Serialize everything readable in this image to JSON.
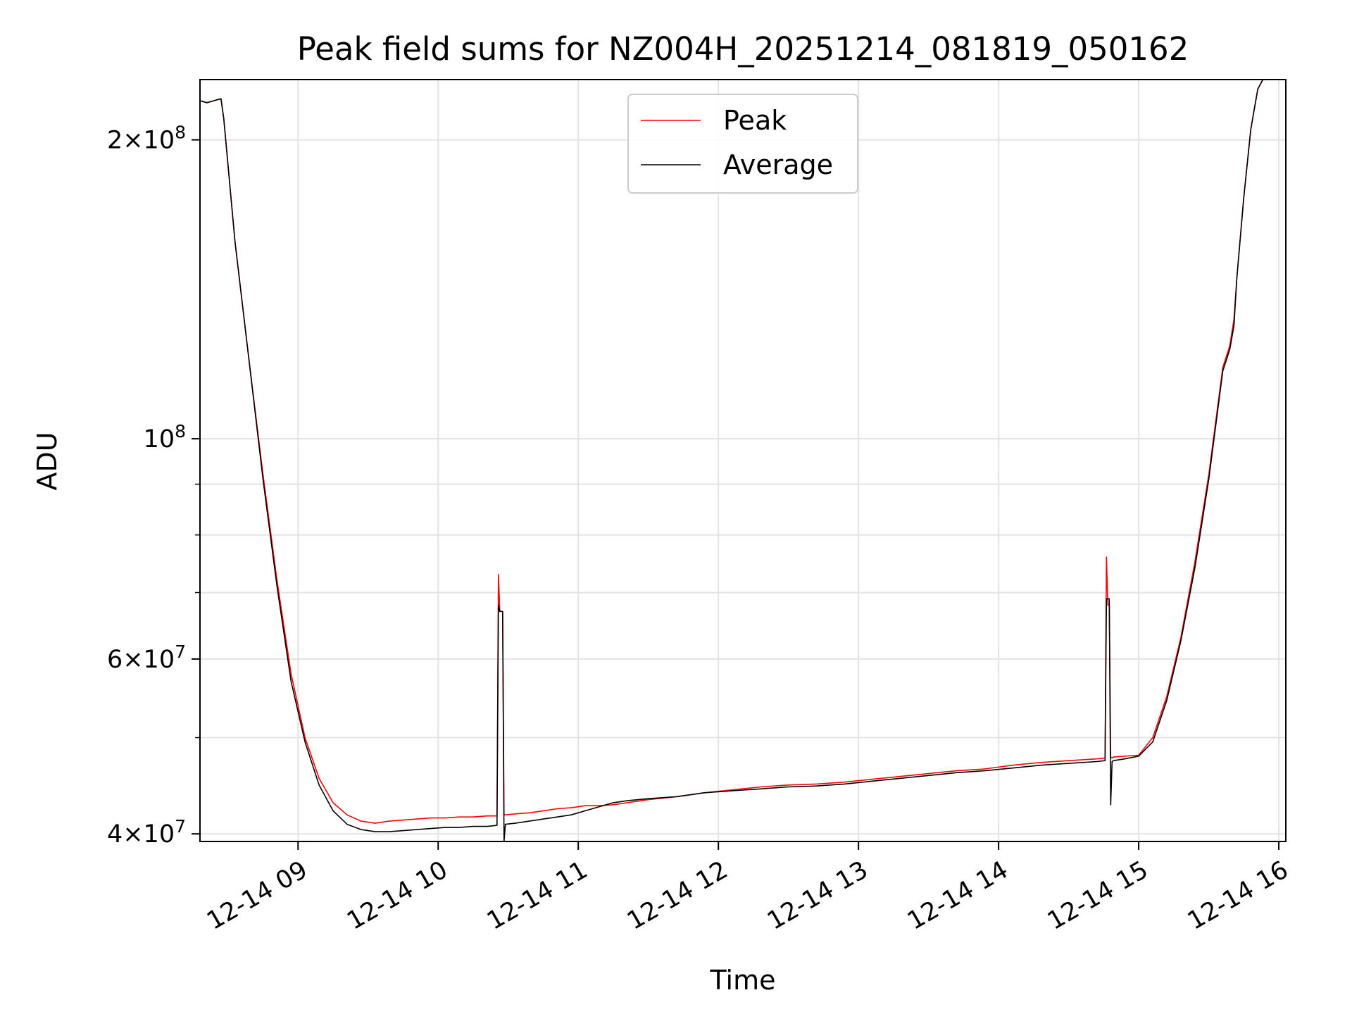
{
  "chart_data": {
    "type": "line",
    "title": "Peak field sums for NZ004H_20251214_081819_050162",
    "xlabel": "Time",
    "ylabel": "ADU",
    "yscale": "log",
    "xlim": [
      8.3,
      16.05
    ],
    "ylim": [
      39300000,
      230000000
    ],
    "grid": true,
    "legend_position": "top-center",
    "x_ticks": [
      {
        "value": 9,
        "label": "12-14 09"
      },
      {
        "value": 10,
        "label": "12-14 10"
      },
      {
        "value": 11,
        "label": "12-14 11"
      },
      {
        "value": 12,
        "label": "12-14 12"
      },
      {
        "value": 13,
        "label": "12-14 13"
      },
      {
        "value": 14,
        "label": "12-14 14"
      },
      {
        "value": 15,
        "label": "12-14 15"
      },
      {
        "value": 16,
        "label": "12-14 16"
      }
    ],
    "y_ticks": [
      {
        "value": 40000000,
        "mantissa": "4",
        "exp": "7"
      },
      {
        "value": 60000000,
        "mantissa": "6",
        "exp": "7"
      },
      {
        "value": 100000000,
        "mantissa": "",
        "exp": "8"
      },
      {
        "value": 200000000,
        "mantissa": "2",
        "exp": "8"
      }
    ],
    "y_minor_ticks": [
      50000000,
      70000000,
      80000000,
      90000000
    ],
    "series": [
      {
        "name": "Peak",
        "color": "#ff0000",
        "x": [
          8.3,
          8.35,
          8.4,
          8.45,
          8.47,
          8.55,
          8.65,
          8.75,
          8.85,
          8.95,
          9.05,
          9.15,
          9.25,
          9.35,
          9.45,
          9.55,
          9.65,
          9.75,
          9.85,
          9.95,
          10.05,
          10.15,
          10.25,
          10.35,
          10.42,
          10.43,
          10.44,
          10.46,
          10.47,
          10.48,
          10.55,
          10.65,
          10.75,
          10.85,
          10.95,
          11.05,
          11.15,
          11.25,
          11.35,
          11.5,
          11.7,
          11.9,
          12.1,
          12.3,
          12.5,
          12.7,
          12.9,
          13.1,
          13.3,
          13.5,
          13.7,
          13.9,
          14.1,
          14.3,
          14.5,
          14.7,
          14.76,
          14.77,
          14.78,
          14.79,
          14.8,
          14.81,
          14.82,
          14.9,
          15.0,
          15.1,
          15.2,
          15.3,
          15.4,
          15.5,
          15.6,
          15.65,
          15.68,
          15.7,
          15.75,
          15.8,
          15.85,
          15.9,
          15.95
        ],
        "y": [
          219000000,
          218000000,
          219000000,
          220000000,
          210000000,
          158000000,
          120000000,
          92000000,
          72000000,
          58000000,
          50000000,
          45500000,
          43000000,
          41800000,
          41200000,
          41000000,
          41200000,
          41300000,
          41400000,
          41500000,
          41500000,
          41600000,
          41600000,
          41700000,
          41700000,
          73000000,
          67000000,
          67000000,
          41800000,
          41800000,
          41900000,
          42000000,
          42200000,
          42400000,
          42500000,
          42700000,
          42700000,
          42800000,
          43000000,
          43300000,
          43600000,
          44000000,
          44300000,
          44600000,
          44800000,
          44900000,
          45100000,
          45400000,
          45700000,
          46000000,
          46300000,
          46500000,
          46900000,
          47200000,
          47400000,
          47600000,
          47700000,
          76000000,
          68000000,
          68000000,
          47800000,
          47700000,
          47800000,
          47900000,
          48000000,
          50000000,
          55000000,
          63000000,
          75000000,
          92000000,
          118000000,
          124000000,
          132000000,
          145000000,
          175000000,
          205000000,
          225000000,
          232000000,
          232000000
        ]
      },
      {
        "name": "Average",
        "color": "#000000",
        "x": [
          8.3,
          8.35,
          8.4,
          8.45,
          8.47,
          8.55,
          8.65,
          8.75,
          8.85,
          8.95,
          9.05,
          9.15,
          9.25,
          9.35,
          9.45,
          9.55,
          9.65,
          9.75,
          9.85,
          9.95,
          10.05,
          10.15,
          10.25,
          10.35,
          10.42,
          10.43,
          10.44,
          10.46,
          10.47,
          10.48,
          10.55,
          10.65,
          10.75,
          10.85,
          10.95,
          11.05,
          11.15,
          11.25,
          11.35,
          11.5,
          11.7,
          11.9,
          12.1,
          12.3,
          12.5,
          12.7,
          12.9,
          13.1,
          13.3,
          13.5,
          13.7,
          13.9,
          14.1,
          14.3,
          14.5,
          14.7,
          14.76,
          14.77,
          14.78,
          14.79,
          14.8,
          14.81,
          14.82,
          14.9,
          15.0,
          15.1,
          15.2,
          15.3,
          15.4,
          15.5,
          15.6,
          15.65,
          15.68,
          15.7,
          15.75,
          15.8,
          15.85,
          15.9,
          15.95
        ],
        "y": [
          219000000,
          218000000,
          219000000,
          220000000,
          210000000,
          158000000,
          120000000,
          91000000,
          71000000,
          57000000,
          49500000,
          44800000,
          42200000,
          40900000,
          40400000,
          40200000,
          40200000,
          40300000,
          40400000,
          40500000,
          40600000,
          40600000,
          40700000,
          40700000,
          40800000,
          68000000,
          67000000,
          67000000,
          39300000,
          40900000,
          41000000,
          41200000,
          41400000,
          41600000,
          41800000,
          42200000,
          42600000,
          43000000,
          43200000,
          43400000,
          43600000,
          44000000,
          44200000,
          44400000,
          44600000,
          44700000,
          44900000,
          45200000,
          45500000,
          45800000,
          46100000,
          46300000,
          46600000,
          46900000,
          47100000,
          47300000,
          47400000,
          69000000,
          69000000,
          69000000,
          42800000,
          47300000,
          47400000,
          47600000,
          47900000,
          49500000,
          54500000,
          62500000,
          74000000,
          91000000,
          117000000,
          123000000,
          130000000,
          145000000,
          175000000,
          205000000,
          225000000,
          232000000,
          232000000
        ]
      }
    ]
  }
}
